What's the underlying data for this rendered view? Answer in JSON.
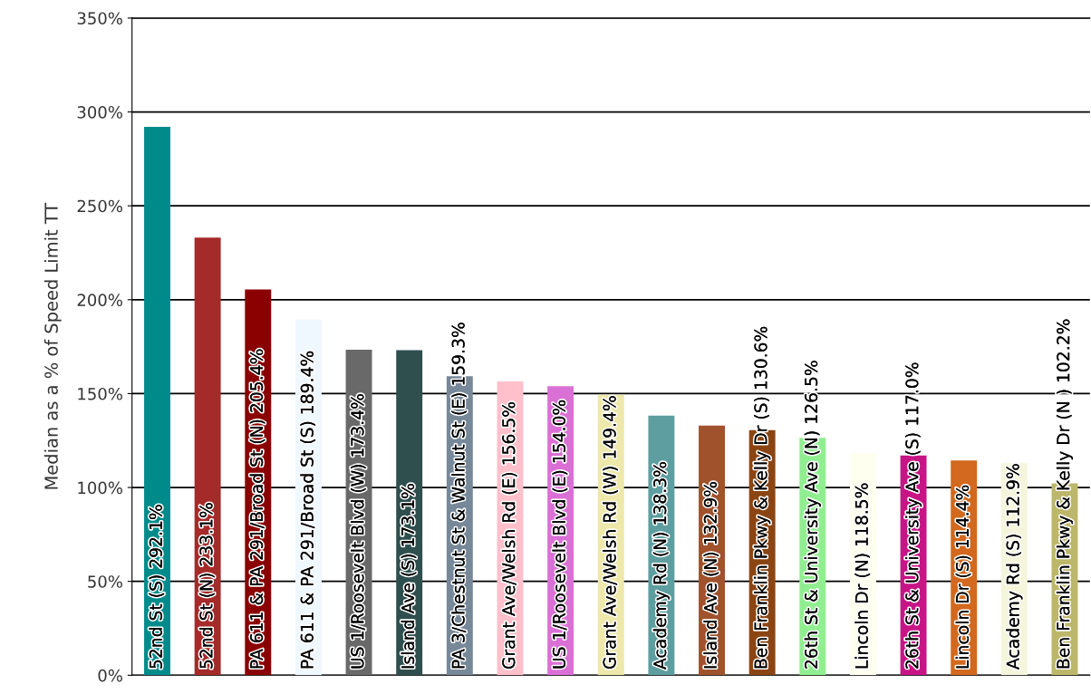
{
  "chart_data": {
    "type": "bar",
    "ylabel": "Median as a % of Speed Limit TT",
    "categories": [
      "52nd St (S)",
      "52nd St (N)",
      "PA 611 & PA 291/Broad St (N)",
      "PA 611 & PA 291/Broad St (S)",
      "US 1/Roosevelt Blvd (W)",
      "Island Ave (S)",
      "PA 3/Chestnut St & Walnut St (E)",
      "Grant Ave/Welsh Rd (E)",
      "US 1/Roosevelt Blvd (E)",
      "Grant Ave/Welsh Rd (W)",
      "Academy Rd (N)",
      "Island Ave (N)",
      "Ben Franklin Pkwy & Kelly Dr (S)",
      "26th St & University Ave (N)",
      "Lincoln Dr (N)",
      "26th St & University Ave (S)",
      "Lincoln Dr (S)",
      "Academy Rd (S)",
      "Ben Franklin Pkwy & Kelly Dr (N )"
    ],
    "values": [
      292.1,
      233.1,
      205.4,
      189.4,
      173.4,
      173.1,
      159.3,
      156.5,
      154.0,
      149.4,
      138.3,
      132.9,
      130.6,
      126.5,
      118.5,
      117.0,
      114.4,
      112.9,
      102.2
    ],
    "value_labels": [
      "292.1%",
      "233.1%",
      "205.4%",
      "189.4%",
      "173.4%",
      "173.1%",
      "159.3%",
      "156.5%",
      "154.0%",
      "149.4%",
      "138.3%",
      "132.9%",
      "130.6%",
      "126.5%",
      "118.5%",
      "117.0%",
      "114.4%",
      "112.9%",
      "102.2%"
    ],
    "colors": [
      "#008b8b",
      "#a52a2a",
      "#8b0000",
      "#f0f8ff",
      "#696969",
      "#2f4f4f",
      "#778899",
      "#ffc0cb",
      "#da70d6",
      "#eee8aa",
      "#5f9ea0",
      "#a0522d",
      "#8b4513",
      "#90ee90",
      "#fffff0",
      "#c71585",
      "#d2691e",
      "#f5f5dc",
      "#bdb76b"
    ],
    "ylim": [
      0,
      350
    ],
    "yticks": [
      {
        "value": 0,
        "label": "0%"
      },
      {
        "value": 50,
        "label": "50%"
      },
      {
        "value": 100,
        "label": "100%"
      },
      {
        "value": 150,
        "label": "150%"
      },
      {
        "value": 200,
        "label": "200%"
      },
      {
        "value": 250,
        "label": "250%"
      },
      {
        "value": 300,
        "label": "300%"
      },
      {
        "value": 350,
        "label": "350%"
      }
    ],
    "grid": "y",
    "legend": false
  }
}
